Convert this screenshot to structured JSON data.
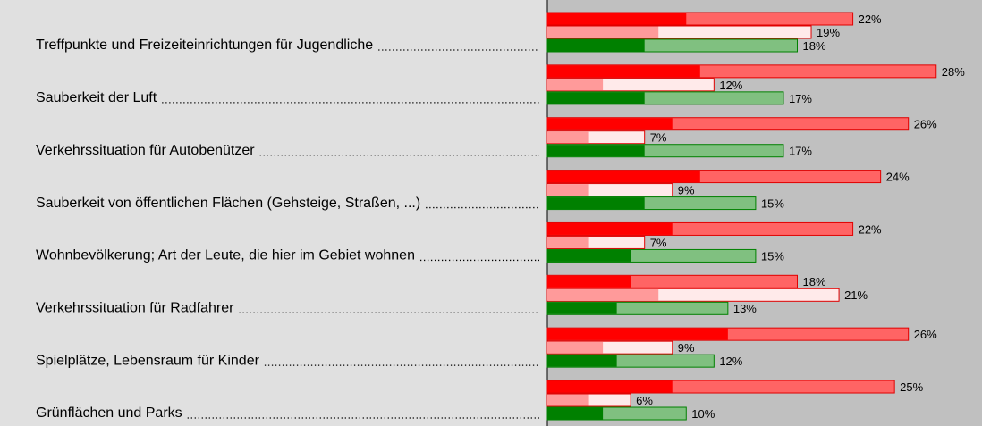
{
  "chart_data": {
    "type": "bar",
    "orientation": "horizontal",
    "categories": [
      "Treffpunkte und Freizeiteinrichtungen für Jugendliche",
      "Sauberkeit der Luft",
      "Verkehrssituation für Autobenützer",
      "Sauberkeit von öffentlichen Flächen (Gehsteige, Straßen, ...)",
      "Wohnbevölkerung; Art der Leute, die hier im Gebiet wohnen",
      "Verkehrssituation für Radfahrer",
      "Spielplätze, Lebensraum für Kinder",
      "Grünflächen und Parks"
    ],
    "xlim": [
      0,
      31.3
    ],
    "series": [
      {
        "color": "#ff6464",
        "border": "#e00000",
        "inner_color": "#ff0000",
        "values": [
          22,
          28,
          26,
          24,
          22,
          18,
          26,
          25
        ],
        "inner_values": [
          10,
          11,
          9,
          11,
          9,
          6,
          13,
          9
        ],
        "value_labels": [
          "22%",
          "28%",
          "26%",
          "24%",
          "22%",
          "18%",
          "26%",
          "25%"
        ]
      },
      {
        "color": "#ffeaea",
        "border": "#e00000",
        "inner_color": "#ff9a9a",
        "values": [
          19,
          12,
          7,
          9,
          7,
          21,
          9,
          6
        ],
        "inner_values": [
          8,
          4,
          3,
          3,
          3,
          8,
          4,
          3
        ],
        "value_labels": [
          "19%",
          "12%",
          "7%",
          "9%",
          "7%",
          "21%",
          "9%",
          "6%"
        ]
      },
      {
        "color": "#80c080",
        "border": "#008000",
        "inner_color": "#008000",
        "values": [
          18,
          17,
          17,
          15,
          15,
          13,
          12,
          10
        ],
        "inner_values": [
          7,
          7,
          7,
          7,
          6,
          5,
          5,
          4
        ],
        "value_labels": [
          "18%",
          "17%",
          "17%",
          "15%",
          "15%",
          "13%",
          "12%",
          "10%"
        ]
      }
    ]
  }
}
